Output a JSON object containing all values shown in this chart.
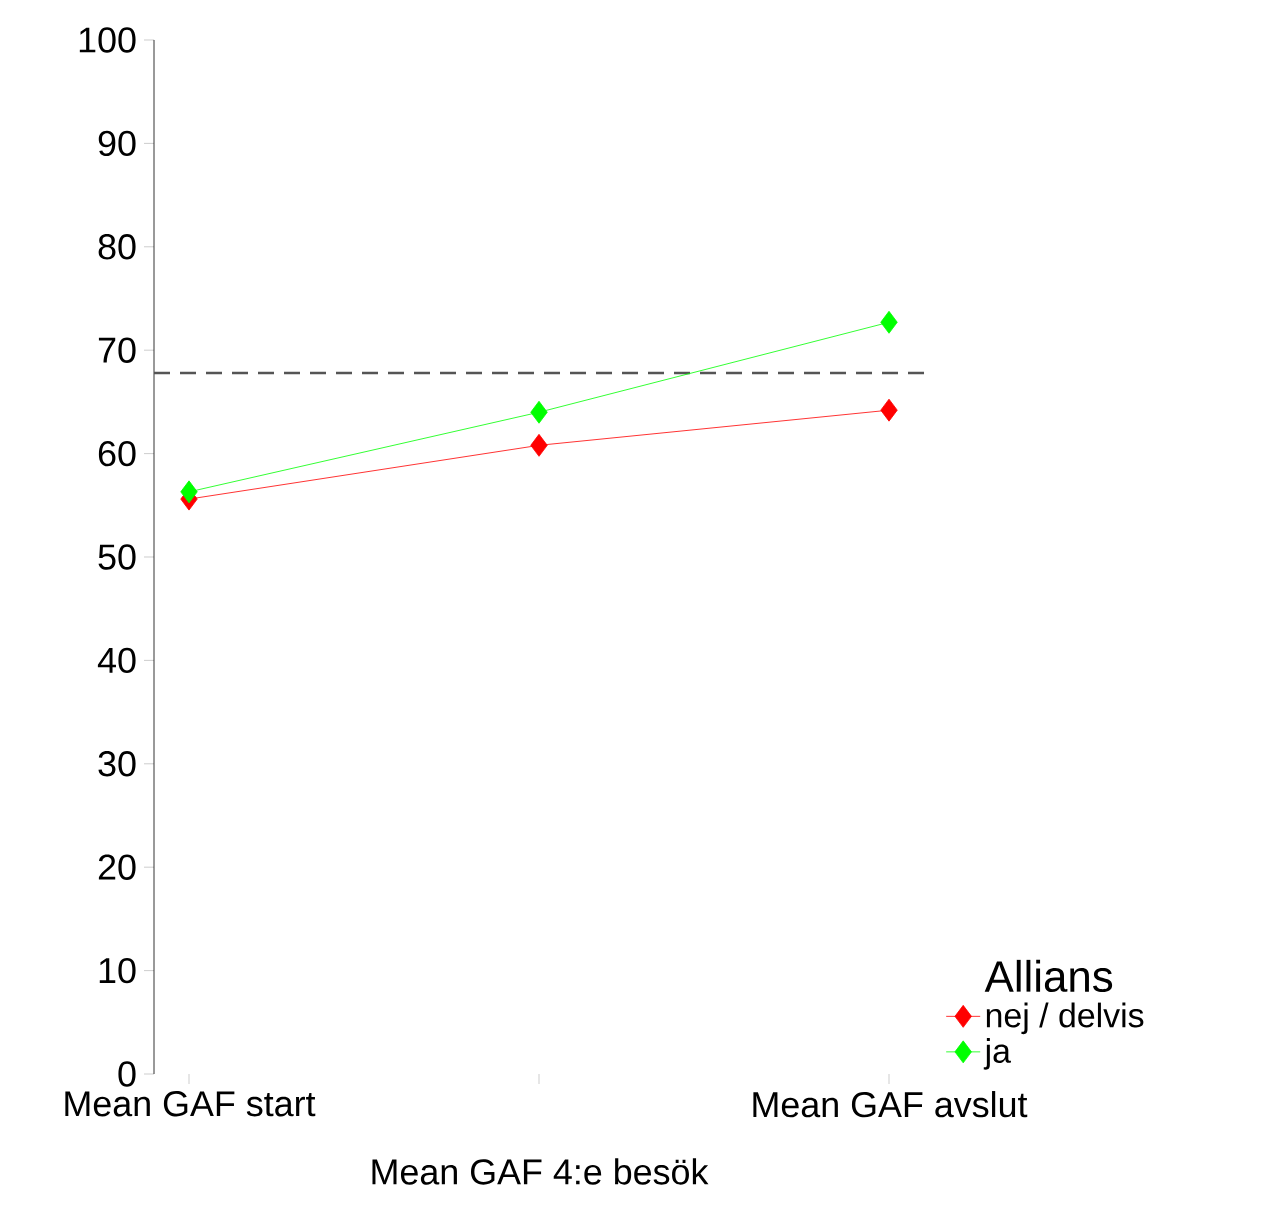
{
  "chart_data": {
    "type": "line",
    "categories": [
      "Mean GAF start",
      "Mean GAF 4:e  besök",
      "Mean GAF avslut"
    ],
    "series": [
      {
        "name": "nej / delvis",
        "color": "#ff0000",
        "values": [
          55.6,
          60.8,
          64.2
        ]
      },
      {
        "name": "ja",
        "color": "#00ff00",
        "values": [
          56.3,
          64.0,
          72.7
        ]
      }
    ],
    "legend_title": "Allians",
    "legend": "right",
    "marker": "diamond",
    "line_style": "solid",
    "ylim": [
      0,
      100
    ],
    "yticks": [
      0,
      10,
      20,
      30,
      40,
      50,
      60,
      70,
      80,
      90,
      100
    ],
    "grid": false,
    "ref_lines": [
      {
        "axis": "y",
        "value": 67.8,
        "color": "#555555",
        "line_style": "dashed"
      }
    ]
  }
}
